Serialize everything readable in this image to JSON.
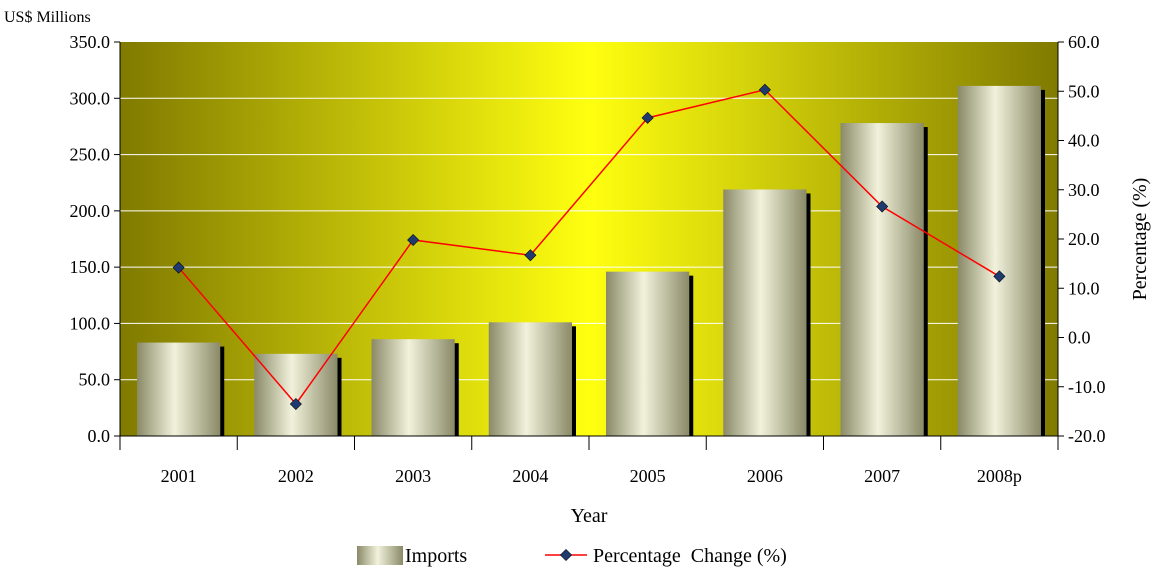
{
  "chart_data": {
    "type": "bar",
    "categories": [
      "2001",
      "2002",
      "2003",
      "2004",
      "2005",
      "2006",
      "2007",
      "2008p"
    ],
    "series": [
      {
        "name": "Imports",
        "type": "bar",
        "axis": "left",
        "values": [
          83.0,
          73.0,
          86.0,
          101.0,
          146.0,
          219.0,
          278.0,
          311.0
        ]
      },
      {
        "name": "Percentage  Change (%)",
        "type": "line",
        "axis": "right",
        "values": [
          14.2,
          -13.5,
          19.8,
          16.7,
          44.6,
          50.3,
          26.6,
          12.4
        ]
      }
    ],
    "xlabel": "Year",
    "ylabel": "US$ Millions",
    "y2label": "Percentage (%)",
    "ylim": [
      0,
      350
    ],
    "y2lim": [
      -20,
      60
    ],
    "yticks": [
      "0.0",
      "50.0",
      "100.0",
      "150.0",
      "200.0",
      "250.0",
      "300.0",
      "350.0"
    ],
    "y2ticks": [
      "-20.0",
      "-10.0",
      "0.0",
      "10.0",
      "20.0",
      "30.0",
      "40.0",
      "50.0",
      "60.0"
    ],
    "grid": true,
    "legend": "bottom",
    "colors": {
      "bar": "#d8d8b0",
      "bar_shadow": "#000000",
      "line": "#ff0000",
      "marker": "#1f3a6e",
      "plot_bg_center": "#ffff10",
      "plot_bg_edge": "#807a00",
      "grid": "#ffffff"
    }
  }
}
